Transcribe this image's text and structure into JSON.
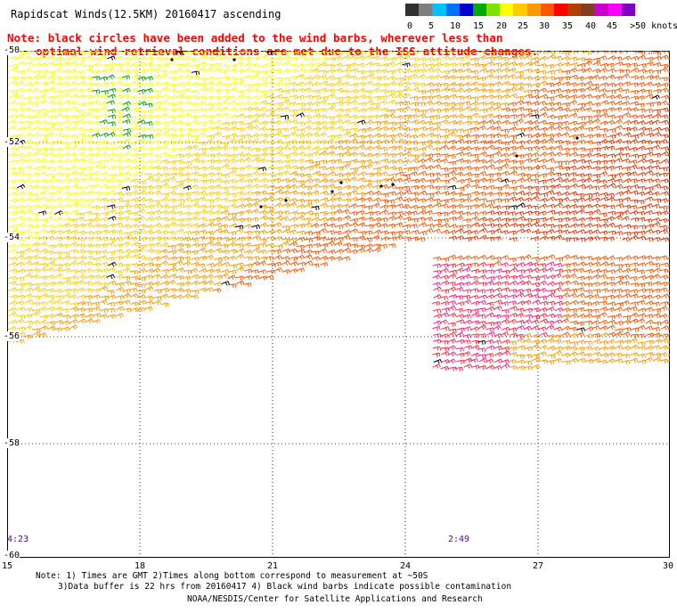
{
  "header": {
    "title": "Rapidscat Winds(12.5KM) 20160417 ascending",
    "note_line1": "Note: black circles have been added to the wind barbs, wherever less than",
    "note_line2": "optimal wind retrieval conditions are met due to the ISS attitude changes."
  },
  "legend": {
    "colors": [
      "#303030",
      "#7f7f7f",
      "#00c0ff",
      "#0070ff",
      "#0000cc",
      "#00aa00",
      "#80e000",
      "#ffff00",
      "#ffcc00",
      "#ff9900",
      "#ff5500",
      "#ff0000",
      "#b04000",
      "#804020",
      "#cc00cc",
      "#ff00ff",
      "#8000c0"
    ],
    "labels": [
      "0",
      "5",
      "10",
      "15",
      "20",
      "25",
      "30",
      "35",
      "40",
      "45",
      ">50 knots"
    ]
  },
  "map": {
    "lat_labels": [
      "-50",
      "-52",
      "-54",
      "-56",
      "-58",
      "-60"
    ],
    "lon_labels": [
      "15",
      "18",
      "21",
      "24",
      "27",
      "30"
    ],
    "time_labels": [
      "4:23",
      "2:49"
    ]
  },
  "footer": {
    "line1": "Note: 1) Times are GMT 2)Times along bottom correspond to measurement at ~50S",
    "line2": "3)Data buffer is 22 hrs from 20160417 4) Black wind barbs indicate possible contamination",
    "line3": "NOAA/NESDIS/Center for Satellite Applications and Research"
  }
}
